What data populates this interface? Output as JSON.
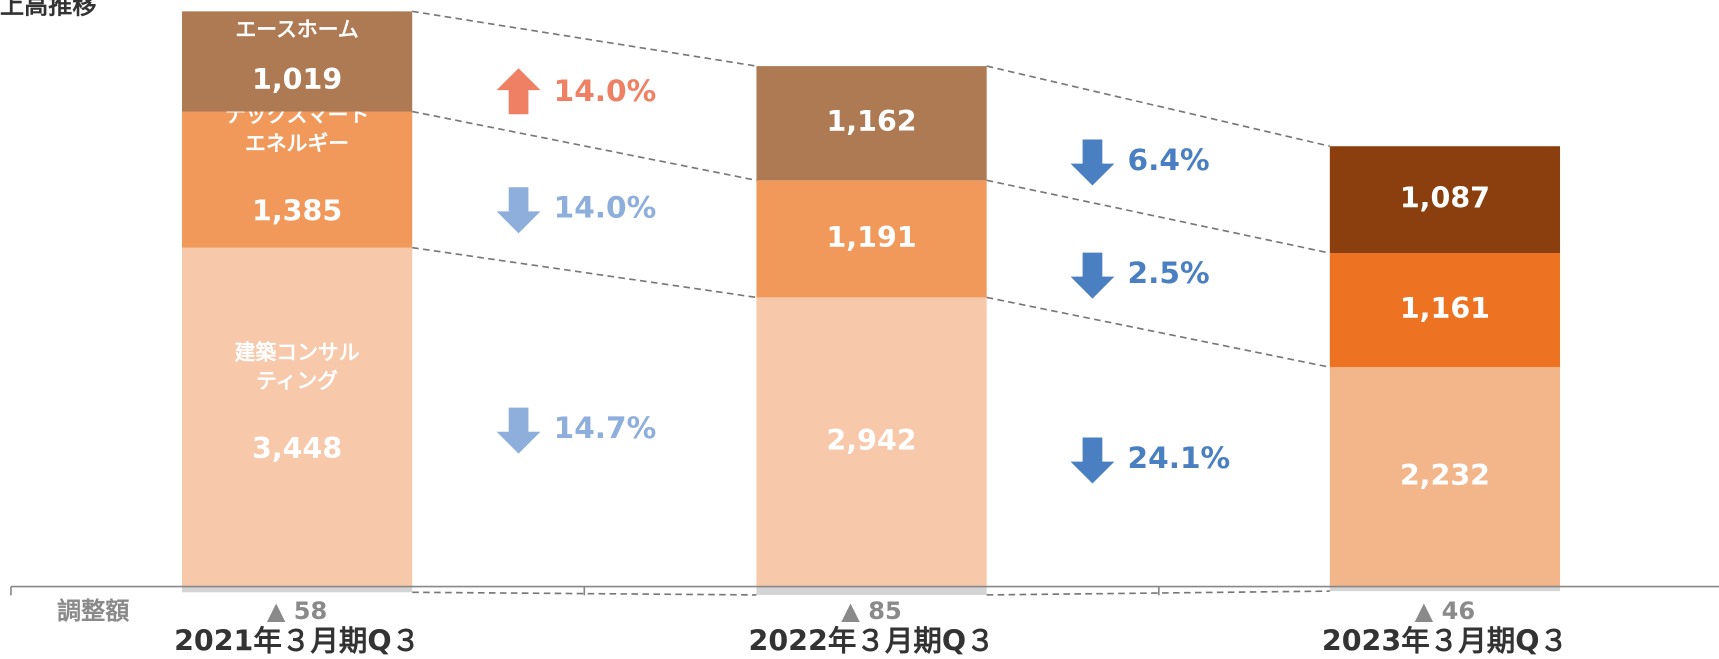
{
  "chart_data": {
    "type": "stacked_bar",
    "title": "上高推移",
    "categories": [
      "2021年３月期Q３",
      "2022年３月期Q３",
      "2023年３月期Q３"
    ],
    "ylim": [
      0,
      5900
    ],
    "series": [
      {
        "name": [
          "建築コンサル",
          "ティング"
        ],
        "colors": [
          "#f7c8aa",
          "#f7c8aa",
          "#f3b58a"
        ],
        "values": [
          3448,
          2942,
          2232
        ],
        "value_labels": [
          "3,448",
          "2,942",
          "2,232"
        ]
      },
      {
        "name": [
          "ナックスマート",
          "エネルギー"
        ],
        "colors": [
          "#f0995a",
          "#f0995a",
          "#ed7323"
        ],
        "values": [
          1385,
          1191,
          1161
        ],
        "value_labels": [
          "1,385",
          "1,191",
          "1,161"
        ]
      },
      {
        "name": [
          "エースホーム"
        ],
        "colors": [
          "#ad7a53",
          "#ad7a53",
          "#8b3f0e"
        ],
        "values": [
          1019,
          1162,
          1087
        ],
        "value_labels": [
          "1,019",
          "1,162",
          "1,087"
        ]
      }
    ],
    "adjustments": {
      "label": "調整額",
      "color": "#d4d4d4",
      "values": [
        -58,
        -85,
        -46
      ],
      "value_labels": [
        "▲ 58",
        "▲ 85",
        "▲ 46"
      ]
    },
    "changes": [
      {
        "colors": [
          "#8eaedb",
          "#8eaedb",
          "#f08064"
        ],
        "values": [
          -14.7,
          -14.0,
          14.0
        ],
        "value_labels": [
          "14.7%",
          "14.0%",
          "14.0%"
        ]
      },
      {
        "colors": [
          "#4a7fc1",
          "#4a7fc1",
          "#4a7fc1"
        ],
        "values": [
          -24.1,
          -2.5,
          -6.4
        ],
        "value_labels": [
          "24.1%",
          "2.5%",
          "6.4%"
        ]
      }
    ]
  }
}
